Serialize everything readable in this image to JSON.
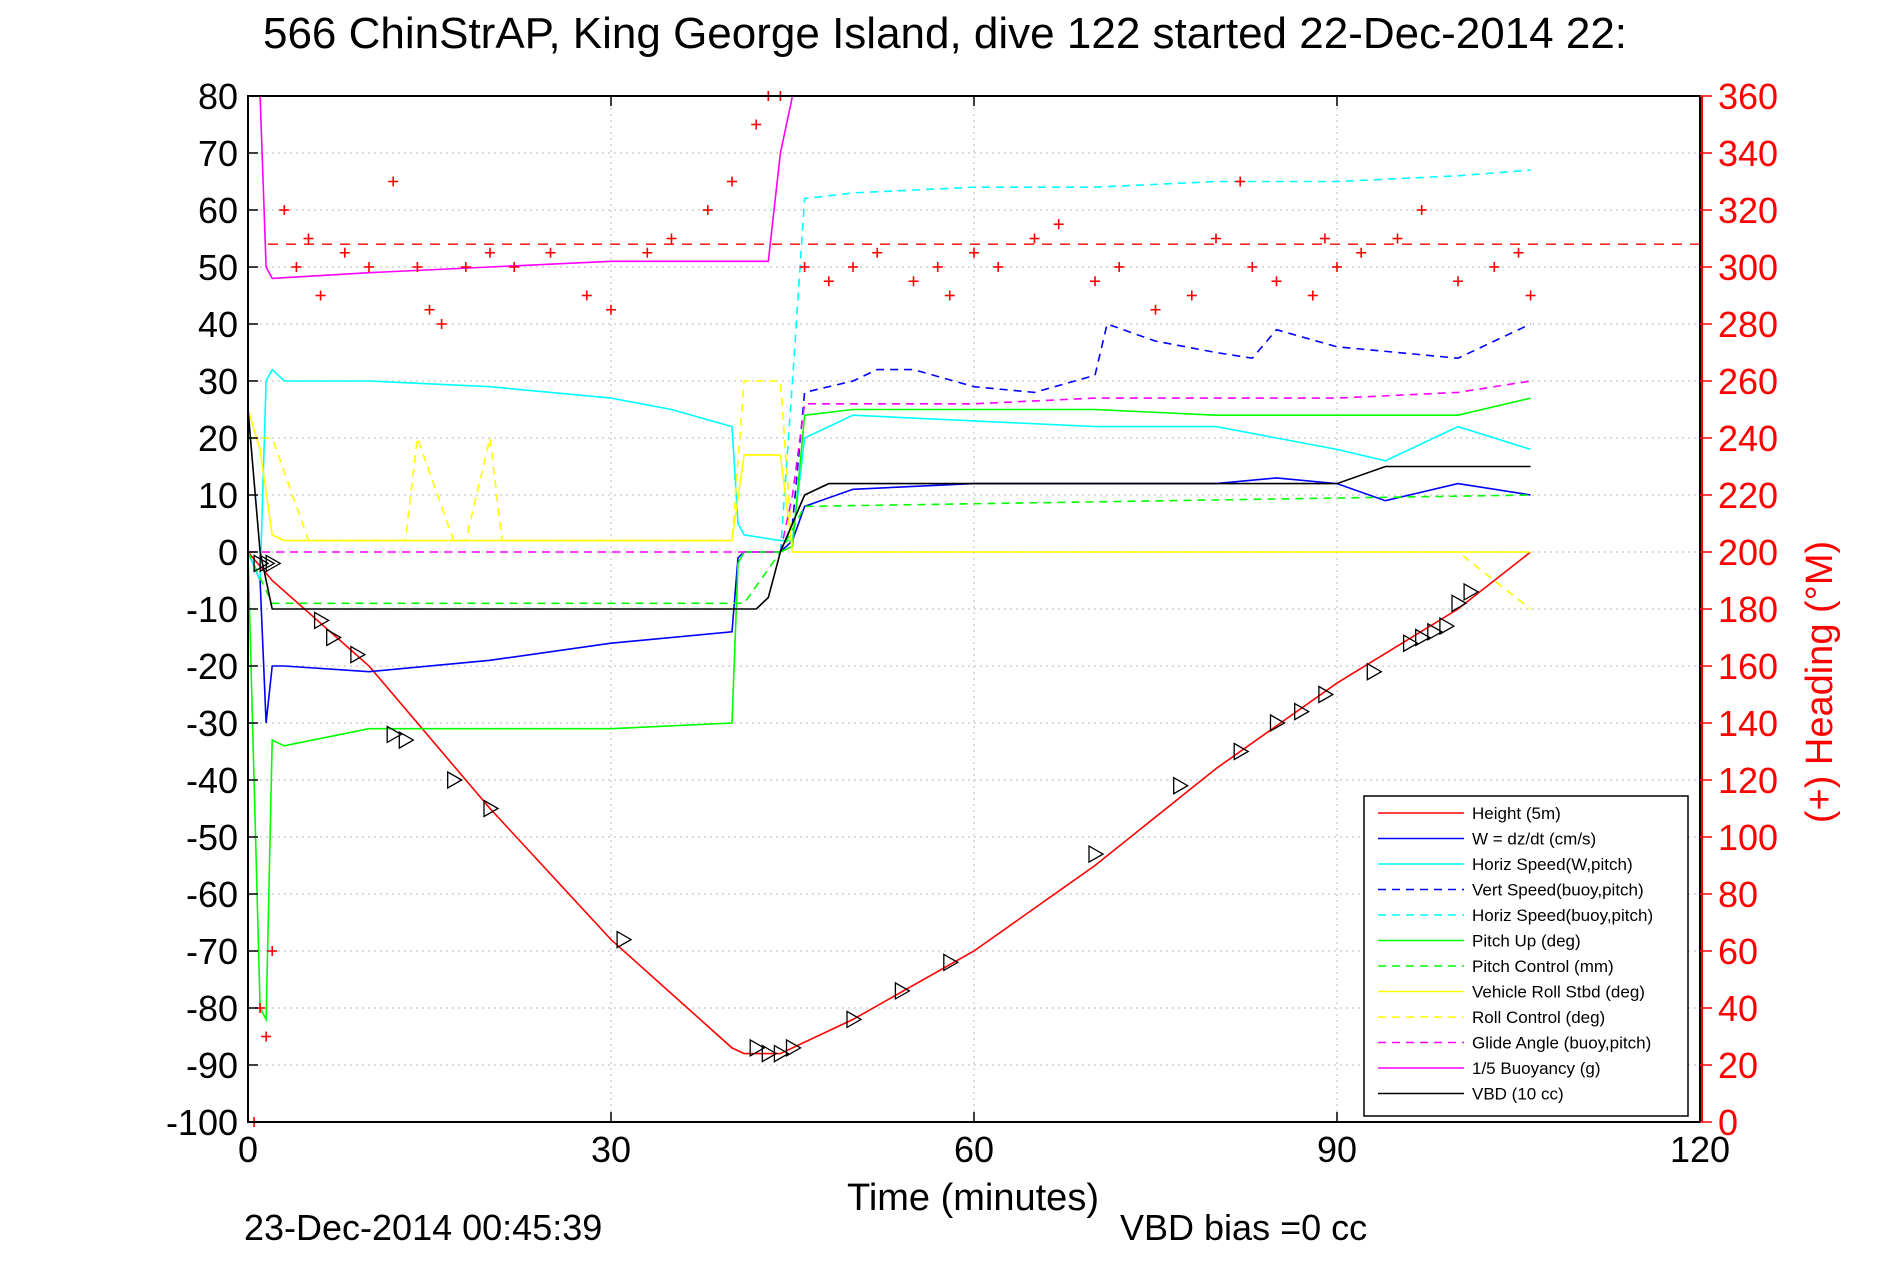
{
  "chart_data": {
    "type": "line",
    "title": "566 ChinStrAP, King George Island, dive 122 started 22-Dec-2014 22:",
    "xlabel": "Time (minutes)",
    "ylabel_right": "(+) Heading (°M)",
    "footer_left": "23-Dec-2014 00:45:39",
    "footer_right": "VBD bias =0 cc",
    "xlim": [
      0,
      120
    ],
    "ylim_left": [
      -100,
      80
    ],
    "ylim_right": [
      0,
      360
    ],
    "xticks": [
      "0",
      "30",
      "60",
      "90",
      "120"
    ],
    "yticks_left": [
      "80",
      "70",
      "60",
      "50",
      "40",
      "30",
      "20",
      "10",
      "0",
      "-10",
      "-20",
      "-30",
      "-40",
      "-50",
      "-60",
      "-70",
      "-80",
      "-90",
      "-100"
    ],
    "yticks_right": [
      "360",
      "340",
      "320",
      "300",
      "280",
      "260",
      "240",
      "220",
      "200",
      "180",
      "160",
      "140",
      "120",
      "100",
      "80",
      "60",
      "40",
      "20",
      "0"
    ],
    "grid": true,
    "legend_position": "bottom-right",
    "colors": {
      "red": "#ff0000",
      "blue": "#0000ff",
      "cyan": "#00ffff",
      "green": "#00ff00",
      "yellow": "#ffff00",
      "magenta": "#ff00ff",
      "black": "#000000",
      "grid": "#c8c8c8"
    },
    "series": [
      {
        "name": "Height (5m)",
        "color": "#ff0000",
        "dash": "solid",
        "x": [
          0,
          2,
          10,
          20,
          30,
          40,
          41,
          44,
          50,
          60,
          70,
          80,
          90,
          100,
          106
        ],
        "y": [
          0,
          -5,
          -20,
          -45,
          -68,
          -87,
          -88,
          -88,
          -82,
          -70,
          -55,
          -38,
          -23,
          -10,
          0
        ]
      },
      {
        "name": "W = dz/dt (cm/s)",
        "color": "#0000ff",
        "dash": "solid",
        "x": [
          0,
          1,
          1.5,
          2,
          3,
          10,
          20,
          30,
          40,
          40.5,
          41,
          44,
          45,
          46,
          50,
          60,
          70,
          80,
          85,
          90,
          94,
          100,
          106
        ],
        "y": [
          0,
          -5,
          -30,
          -20,
          -20,
          -21,
          -19,
          -16,
          -14,
          -1,
          0,
          0,
          2,
          8,
          11,
          12,
          12,
          12,
          13,
          12,
          9,
          12,
          10
        ]
      },
      {
        "name": "Horiz Speed(W,pitch)",
        "color": "#00ffff",
        "dash": "solid",
        "x": [
          0,
          1,
          1.5,
          2,
          3,
          10,
          20,
          30,
          35,
          40,
          40.5,
          41,
          44,
          45,
          46,
          50,
          60,
          70,
          80,
          85,
          90,
          94,
          100,
          106
        ],
        "y": [
          0,
          -5,
          30,
          32,
          30,
          30,
          29,
          27,
          25,
          22,
          5,
          3,
          2,
          2,
          20,
          24,
          23,
          22,
          22,
          20,
          18,
          16,
          22,
          18
        ]
      },
      {
        "name": "Vert Speed(buoy,pitch)",
        "color": "#0000ff",
        "dash": "dashed",
        "x": [
          44,
          45,
          46,
          50,
          52,
          55,
          60,
          65,
          70,
          71,
          75,
          80,
          83,
          85,
          90,
          95,
          100,
          106
        ],
        "y": [
          0,
          5,
          28,
          30,
          32,
          32,
          29,
          28,
          31,
          40,
          37,
          35,
          34,
          39,
          36,
          35,
          34,
          40
        ]
      },
      {
        "name": "Horiz Speed(buoy,pitch)",
        "color": "#00ffff",
        "dash": "dashed",
        "x": [
          44,
          45,
          46,
          50,
          60,
          70,
          80,
          90,
          100,
          106
        ],
        "y": [
          0,
          30,
          62,
          63,
          64,
          64,
          65,
          65,
          66,
          67
        ]
      },
      {
        "name": "Pitch Up (deg)",
        "color": "#00ff00",
        "dash": "solid",
        "x": [
          0,
          1,
          1.5,
          2,
          3,
          10,
          20,
          30,
          40,
          40.5,
          41,
          44,
          45,
          46,
          50,
          60,
          70,
          80,
          90,
          100,
          106
        ],
        "y": [
          0,
          -80,
          -82,
          -33,
          -34,
          -31,
          -31,
          -31,
          -30,
          -2,
          0,
          0,
          1,
          24,
          25,
          25,
          25,
          24,
          24,
          24,
          27
        ]
      },
      {
        "name": "Pitch Control (mm)",
        "color": "#00ff00",
        "dash": "dashed",
        "x": [
          0,
          2,
          3,
          40,
          41,
          44,
          46,
          106
        ],
        "y": [
          0,
          -9,
          -9,
          -9,
          -9,
          0,
          8,
          10
        ]
      },
      {
        "name": "Vehicle Roll Stbd (deg)",
        "color": "#ffff00",
        "dash": "solid",
        "x": [
          0,
          1,
          2,
          3,
          10,
          20,
          30,
          40,
          41,
          44,
          45,
          46,
          50,
          60,
          70,
          80,
          90,
          100,
          106
        ],
        "y": [
          25,
          18,
          3,
          2,
          2,
          2,
          2,
          2,
          17,
          17,
          0,
          0,
          0,
          0,
          0,
          0,
          0,
          0,
          0
        ]
      },
      {
        "name": "Roll Control (deg)",
        "color": "#ffff00",
        "dash": "dashed",
        "x": [
          0,
          2,
          5,
          13,
          14,
          17,
          18,
          20,
          21,
          30,
          40,
          41,
          44,
          45,
          46,
          50,
          60,
          70,
          80,
          90,
          100,
          106
        ],
        "y": [
          20,
          20,
          2,
          2,
          20,
          2,
          2,
          20,
          2,
          2,
          2,
          30,
          30,
          0,
          0,
          0,
          0,
          0,
          0,
          0,
          0,
          -10
        ]
      },
      {
        "name": "Glide Angle (buoy,pitch)",
        "color": "#ff00ff",
        "dash": "dashed",
        "x": [
          0,
          44,
          45,
          46,
          50,
          60,
          70,
          80,
          90,
          100,
          106
        ],
        "y": [
          0,
          0,
          10,
          26,
          26,
          26,
          27,
          27,
          27,
          28,
          30
        ]
      },
      {
        "name": "1/5 Buoyancy (g)",
        "color": "#ff00ff",
        "dash": "solid",
        "x": [
          0.5,
          1,
          1.5,
          2,
          10,
          20,
          30,
          40,
          43,
          44,
          45
        ],
        "y": [
          80,
          80,
          50,
          48,
          49,
          50,
          51,
          51,
          51,
          70,
          80
        ]
      },
      {
        "name": "VBD (10 cc)",
        "color": "#000000",
        "dash": "solid",
        "x": [
          0,
          1,
          2,
          10,
          20,
          30,
          40,
          42,
          43,
          44,
          46,
          48,
          50,
          60,
          70,
          80,
          90,
          94,
          100,
          106
        ],
        "y": [
          25,
          0,
          -10,
          -10,
          -10,
          -10,
          -10,
          -10,
          -8,
          0,
          10,
          12,
          12,
          12,
          12,
          12,
          12,
          15,
          15,
          15
        ]
      }
    ],
    "heading_markers": {
      "name": "(+) Heading",
      "axis": "right",
      "color": "#ff0000",
      "marker": "+",
      "x": [
        0.5,
        1,
        1.5,
        2,
        3,
        4,
        5,
        6,
        8,
        10,
        12,
        14,
        15,
        16,
        18,
        20,
        22,
        25,
        28,
        30,
        33,
        35,
        38,
        40,
        42,
        43,
        44,
        46,
        48,
        50,
        52,
        55,
        57,
        58,
        60,
        62,
        65,
        67,
        70,
        72,
        75,
        78,
        80,
        82,
        83,
        85,
        88,
        89,
        90,
        92,
        95,
        97,
        100,
        103,
        105,
        106
      ],
      "y": [
        0,
        40,
        30,
        60,
        320,
        300,
        310,
        290,
        305,
        300,
        330,
        300,
        285,
        280,
        300,
        305,
        300,
        305,
        290,
        285,
        305,
        310,
        320,
        330,
        350,
        360,
        360,
        300,
        295,
        300,
        305,
        295,
        300,
        290,
        305,
        300,
        310,
        315,
        295,
        300,
        285,
        290,
        310,
        330,
        300,
        295,
        290,
        310,
        300,
        305,
        310,
        320,
        295,
        300,
        305,
        290
      ]
    },
    "mean_heading": 308,
    "markers": {
      "name": "triangle markers",
      "color": "#000000",
      "x": [
        1,
        1.5,
        2,
        6,
        7,
        9,
        12,
        13,
        17,
        20,
        31,
        42,
        43,
        44,
        45,
        50,
        54,
        58,
        70,
        77,
        82,
        85,
        87,
        89,
        93,
        96,
        97,
        98,
        99,
        100,
        101
      ],
      "y": [
        -2,
        -2,
        -2,
        -12,
        -15,
        -18,
        -32,
        -33,
        -40,
        -45,
        -68,
        -87,
        -88,
        -88,
        -87,
        -82,
        -77,
        -72,
        -53,
        -41,
        -35,
        -30,
        -28,
        -25,
        -21,
        -16,
        -15,
        -14,
        -13,
        -9,
        -7
      ]
    }
  }
}
